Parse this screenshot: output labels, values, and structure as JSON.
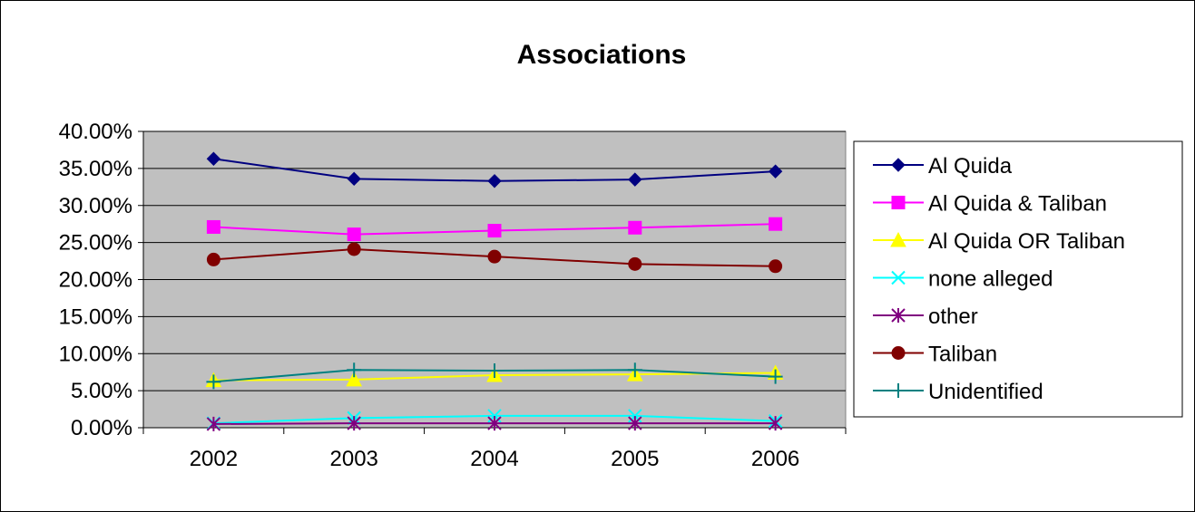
{
  "chart_data": {
    "type": "line",
    "title": "Associations",
    "xlabel": "",
    "ylabel": "",
    "categories": [
      "2002",
      "2003",
      "2004",
      "2005",
      "2006"
    ],
    "ylim": [
      0,
      0.4
    ],
    "yticks": [
      0,
      0.05,
      0.1,
      0.15,
      0.2,
      0.25,
      0.3,
      0.35,
      0.4
    ],
    "ytick_labels": [
      "0.00%",
      "5.00%",
      "10.00%",
      "15.00%",
      "20.00%",
      "25.00%",
      "30.00%",
      "35.00%",
      "40.00%"
    ],
    "grid": true,
    "plot_background": "#c0c0c0",
    "legend_position": "right",
    "series": [
      {
        "name": "Al Quida",
        "values": [
          0.363,
          0.336,
          0.333,
          0.335,
          0.346
        ],
        "color": "#000080",
        "marker": "diamond"
      },
      {
        "name": "Al Quida & Taliban",
        "values": [
          0.271,
          0.261,
          0.266,
          0.27,
          0.275
        ],
        "color": "#ff00ff",
        "marker": "square"
      },
      {
        "name": "Al Quida OR Taliban",
        "values": [
          0.064,
          0.065,
          0.071,
          0.072,
          0.074
        ],
        "color": "#ffff00",
        "marker": "triangle"
      },
      {
        "name": "none alleged",
        "values": [
          0.006,
          0.013,
          0.016,
          0.016,
          0.009
        ],
        "color": "#00ffff",
        "marker": "x"
      },
      {
        "name": "other",
        "values": [
          0.005,
          0.006,
          0.006,
          0.006,
          0.006
        ],
        "color": "#800080",
        "marker": "asterisk"
      },
      {
        "name": "Taliban",
        "values": [
          0.227,
          0.241,
          0.231,
          0.221,
          0.218
        ],
        "color": "#800000",
        "marker": "circle"
      },
      {
        "name": "Unidentified",
        "values": [
          0.062,
          0.078,
          0.077,
          0.078,
          0.069
        ],
        "color": "#008080",
        "marker": "plus"
      }
    ]
  }
}
